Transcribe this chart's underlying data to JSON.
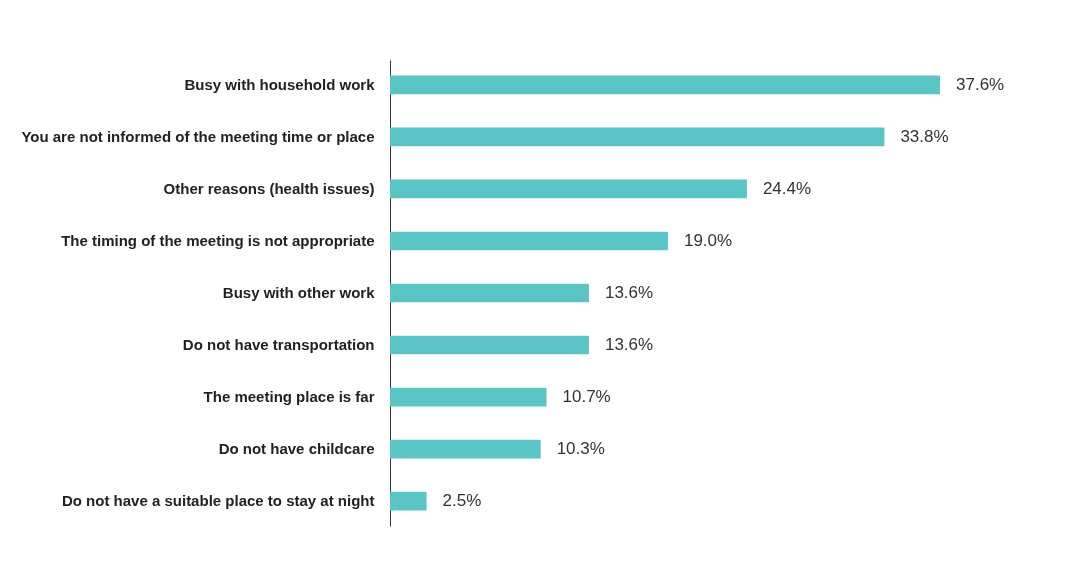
{
  "chart_data": {
    "type": "bar",
    "orientation": "horizontal",
    "categories": [
      "Busy with household work",
      "You are not informed of the meeting time or place",
      "Other reasons (health issues)",
      "The timing of the meeting is not appropriate",
      "Busy with other work",
      "Do not have transportation",
      "The meeting place is far",
      "Do not have childcare",
      "Do not have a suitable place to stay at night"
    ],
    "values": [
      37.6,
      33.8,
      24.4,
      19.0,
      13.6,
      13.6,
      10.7,
      10.3,
      2.5
    ],
    "value_labels": [
      "37.6%",
      "33.8%",
      "24.4%",
      "19.0%",
      "13.6%",
      "13.6%",
      "10.7%",
      "10.3%",
      "2.5%"
    ],
    "color": "#5bc5c6",
    "xlim": [
      0,
      37.6
    ]
  }
}
